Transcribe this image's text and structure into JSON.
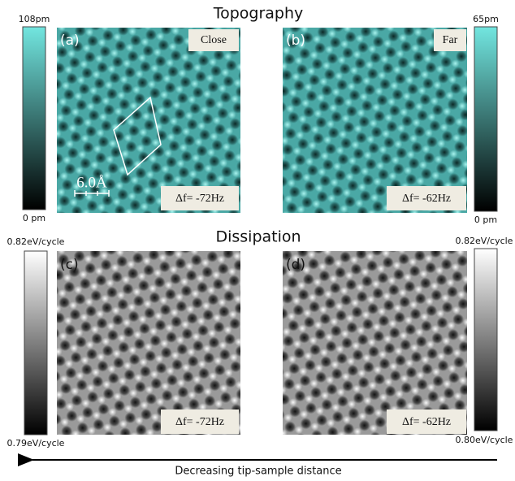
{
  "titles": {
    "topography": "Topography",
    "dissipation": "Dissipation"
  },
  "panels": [
    {
      "label": "(a)",
      "tag": "Close",
      "df": "Δf= -72Hz",
      "scale_bar": "6.0Å"
    },
    {
      "label": "(b)",
      "tag": "Far",
      "df": "Δf= -62Hz"
    },
    {
      "label": "(c)",
      "df": "Δf= -72Hz"
    },
    {
      "label": "(d)",
      "df": "Δf= -62Hz"
    }
  ],
  "colorbars": [
    {
      "max": "108pm",
      "min": "0 pm"
    },
    {
      "max": "65pm",
      "min": "0 pm"
    },
    {
      "max": "0.82eV/cycle",
      "min": "0.79eV/cycle"
    },
    {
      "max": "0.82eV/cycle",
      "min": "0.80eV/cycle"
    }
  ],
  "arrow_caption": "Decreasing tip-sample distance"
}
